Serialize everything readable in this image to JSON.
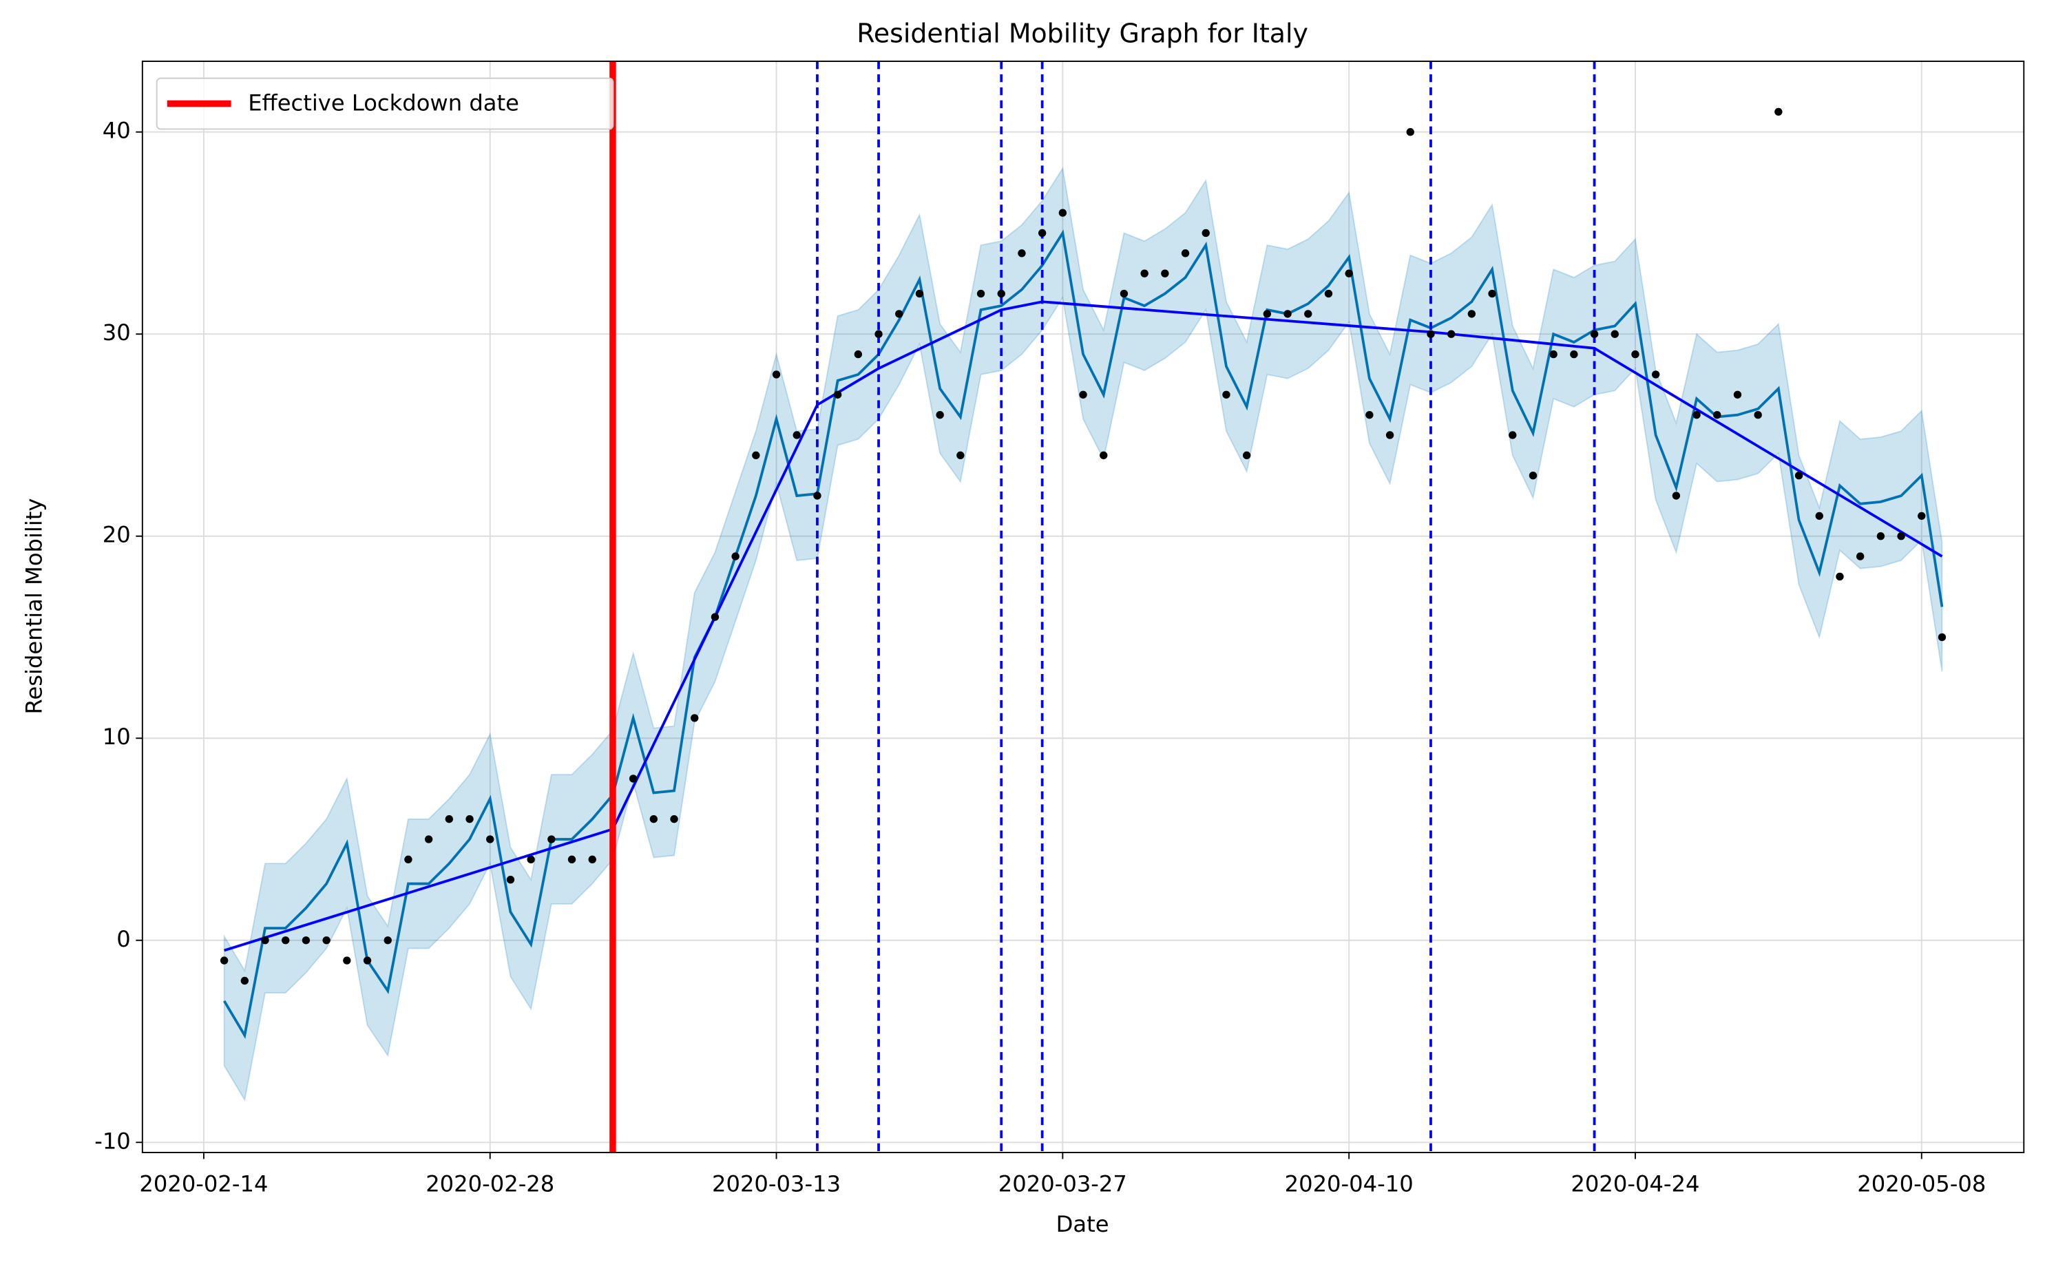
{
  "chart_data": {
    "type": "line",
    "title": "Residential Mobility Graph for Italy",
    "x_label": "Date",
    "y_label": "Residential Mobility",
    "xlim": [
      "2020-02-11",
      "2020-05-13"
    ],
    "xticks": [
      "2020-02-14",
      "2020-02-28",
      "2020-03-13",
      "2020-03-27",
      "2020-04-10",
      "2020-04-24",
      "2020-05-08"
    ],
    "ylim": [
      -10.5,
      43.5
    ],
    "yticks": [
      -10,
      0,
      10,
      20,
      30,
      40
    ],
    "grid": true,
    "legend_position": "upper-left",
    "x": [
      "2020-02-15",
      "2020-02-16",
      "2020-02-17",
      "2020-02-18",
      "2020-02-19",
      "2020-02-20",
      "2020-02-21",
      "2020-02-22",
      "2020-02-23",
      "2020-02-24",
      "2020-02-25",
      "2020-02-26",
      "2020-02-27",
      "2020-02-28",
      "2020-02-29",
      "2020-03-01",
      "2020-03-02",
      "2020-03-03",
      "2020-03-04",
      "2020-03-05",
      "2020-03-06",
      "2020-03-07",
      "2020-03-08",
      "2020-03-09",
      "2020-03-10",
      "2020-03-11",
      "2020-03-12",
      "2020-03-13",
      "2020-03-14",
      "2020-03-15",
      "2020-03-16",
      "2020-03-17",
      "2020-03-18",
      "2020-03-19",
      "2020-03-20",
      "2020-03-21",
      "2020-03-22",
      "2020-03-23",
      "2020-03-24",
      "2020-03-25",
      "2020-03-26",
      "2020-03-27",
      "2020-03-28",
      "2020-03-29",
      "2020-03-30",
      "2020-03-31",
      "2020-04-01",
      "2020-04-02",
      "2020-04-03",
      "2020-04-04",
      "2020-04-05",
      "2020-04-06",
      "2020-04-07",
      "2020-04-08",
      "2020-04-09",
      "2020-04-10",
      "2020-04-11",
      "2020-04-12",
      "2020-04-13",
      "2020-04-14",
      "2020-04-15",
      "2020-04-16",
      "2020-04-17",
      "2020-04-18",
      "2020-04-19",
      "2020-04-20",
      "2020-04-21",
      "2020-04-22",
      "2020-04-23",
      "2020-04-24",
      "2020-04-25",
      "2020-04-26",
      "2020-04-27",
      "2020-04-28",
      "2020-04-29",
      "2020-04-30",
      "2020-05-01",
      "2020-05-02",
      "2020-05-03",
      "2020-05-04",
      "2020-05-05",
      "2020-05-06",
      "2020-05-07",
      "2020-05-08",
      "2020-05-09"
    ],
    "observed": {
      "color": "#000000",
      "values": [
        -1,
        -2,
        0,
        0,
        0,
        0,
        -1,
        -1,
        0,
        4,
        5,
        6,
        6,
        5,
        3,
        4,
        5,
        4,
        4,
        null,
        8,
        6,
        6,
        11,
        16,
        19,
        24,
        28,
        25,
        22,
        27,
        29,
        30,
        31,
        32,
        26,
        24,
        32,
        32,
        34,
        35,
        36,
        27,
        24,
        32,
        33,
        33,
        34,
        35,
        27,
        24,
        31,
        31,
        31,
        32,
        33,
        26,
        25,
        40,
        30,
        30,
        31,
        32,
        25,
        23,
        29,
        29,
        30,
        30,
        29,
        28,
        22,
        26,
        26,
        27,
        26,
        41,
        23,
        21,
        18,
        19,
        20,
        20,
        21,
        15
      ]
    },
    "forecast": {
      "color": "#0072B2",
      "values": [
        -3,
        -4.7,
        0.6,
        0.6,
        1.6,
        2.8,
        4.8,
        -1,
        -2.5,
        2.8,
        2.8,
        3.8,
        5,
        7,
        1.4,
        -0.2,
        5,
        5,
        6,
        7.2,
        11,
        7.3,
        7.4,
        14,
        16,
        19,
        22,
        25.8,
        22,
        22.1,
        27.7,
        28,
        29,
        30.7,
        32.7,
        27.3,
        25.9,
        31.2,
        31.4,
        32.2,
        33.4,
        35,
        29,
        27,
        31.8,
        31.4,
        32,
        32.8,
        34.4,
        28.4,
        26.4,
        31.2,
        31,
        31.5,
        32.4,
        33.8,
        27.8,
        25.8,
        30.7,
        30.3,
        30.8,
        31.6,
        33.2,
        27.2,
        25.1,
        30,
        29.6,
        30.2,
        30.4,
        31.5,
        25,
        22.4,
        26.8,
        25.9,
        26,
        26.3,
        27.3,
        20.8,
        18.2,
        22.5,
        21.6,
        21.7,
        22,
        23,
        16.5
      ],
      "lower": [
        -6.2,
        -7.9,
        -2.6,
        -2.6,
        -1.6,
        -0.4,
        1.6,
        -4.2,
        -5.7,
        -0.4,
        -0.4,
        0.6,
        1.8,
        3.8,
        -1.8,
        -3.4,
        1.8,
        1.8,
        2.8,
        4.0,
        7.8,
        4.1,
        4.2,
        10.8,
        12.8,
        15.8,
        18.8,
        22.6,
        18.8,
        18.9,
        24.5,
        24.8,
        25.8,
        27.5,
        29.5,
        24.1,
        22.7,
        28.0,
        28.2,
        29.0,
        30.2,
        31.8,
        25.8,
        23.8,
        28.6,
        28.2,
        28.8,
        29.6,
        31.2,
        25.2,
        23.2,
        28.0,
        27.8,
        28.3,
        29.2,
        30.6,
        24.6,
        22.6,
        27.5,
        27.1,
        27.6,
        28.4,
        30.0,
        24.0,
        21.9,
        26.8,
        26.4,
        27.0,
        27.2,
        28.3,
        21.8,
        19.2,
        23.6,
        22.7,
        22.8,
        23.1,
        24.1,
        17.6,
        15.0,
        19.3,
        18.4,
        18.5,
        18.8,
        19.8,
        13.3
      ],
      "upper": [
        0.2,
        -1.5,
        3.8,
        3.8,
        4.8,
        6.0,
        8.0,
        2.2,
        0.7,
        6.0,
        6.0,
        7.0,
        8.2,
        10.2,
        4.6,
        3.0,
        8.2,
        8.2,
        9.2,
        10.4,
        14.2,
        10.5,
        10.6,
        17.2,
        19.2,
        22.2,
        25.2,
        29.0,
        25.2,
        25.3,
        30.9,
        31.2,
        32.2,
        33.9,
        35.9,
        30.5,
        29.1,
        34.4,
        34.6,
        35.4,
        36.6,
        38.2,
        32.2,
        30.2,
        35.0,
        34.6,
        35.2,
        36.0,
        37.6,
        31.6,
        29.6,
        34.4,
        34.2,
        34.7,
        35.6,
        37.0,
        31.0,
        29.0,
        33.9,
        33.5,
        34.0,
        34.8,
        36.4,
        30.4,
        28.3,
        33.2,
        32.8,
        33.4,
        33.6,
        34.7,
        28.2,
        25.6,
        30.0,
        29.1,
        29.2,
        29.5,
        30.5,
        24.0,
        21.4,
        25.7,
        24.8,
        24.9,
        25.2,
        26.2,
        19.7
      ]
    },
    "trend": {
      "color": "#0000ff",
      "x": [
        "2020-02-15",
        "2020-03-05",
        "2020-03-15",
        "2020-03-18",
        "2020-03-24",
        "2020-03-26",
        "2020-04-14",
        "2020-04-22",
        "2020-05-09"
      ],
      "values": [
        -0.5,
        5.5,
        26.5,
        28.3,
        31.2,
        31.6,
        30.1,
        29.3,
        19
      ]
    },
    "changepoints": {
      "color": "#0000ff",
      "x": [
        "2020-03-15",
        "2020-03-18",
        "2020-03-24",
        "2020-03-26",
        "2020-04-14",
        "2020-04-22"
      ]
    },
    "lockdown": {
      "name": "Effective Lockdown date",
      "x": "2020-03-05",
      "color": "#ff0000"
    }
  }
}
